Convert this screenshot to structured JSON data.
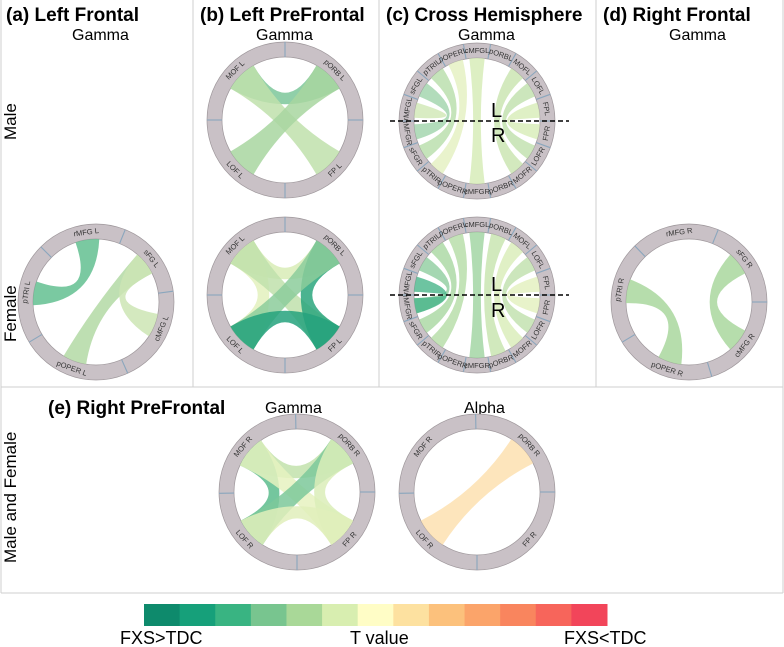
{
  "panels": {
    "a": {
      "title": "(a) Left Frontal",
      "band": "Gamma"
    },
    "b": {
      "title": "(b) Left PreFrontal",
      "band": "Gamma"
    },
    "c": {
      "title": "(c) Cross Hemisphere",
      "band": "Gamma"
    },
    "d": {
      "title": "(d) Right Frontal",
      "band": "Gamma"
    },
    "e": {
      "title": "(e) Right PreFrontal",
      "band_1": "Gamma",
      "band_2": "Alpha"
    }
  },
  "rows": {
    "male": "Male",
    "female": "Female",
    "both": "Male and Female"
  },
  "hemisphere_labels": {
    "left": "L",
    "right": "R"
  },
  "colorbar": {
    "left_label": "FXS>TDC",
    "center_label": "T value",
    "right_label": "FXS<TDC",
    "colors": [
      "#0e8a6c",
      "#16a07a",
      "#39b482",
      "#78c58f",
      "#a9d898",
      "#d8eeb0",
      "#fffdc6",
      "#fde1a0",
      "#fcc17c",
      "#fba46a",
      "#f9855e",
      "#f7655b",
      "#f2455a"
    ]
  },
  "circles": {
    "left_frontal_female": {
      "nodes": [
        "rMFG L",
        "sFG L",
        "cMFG L",
        "pOPER L",
        "pTRI L"
      ],
      "color": "#b4d8a4",
      "links": [
        {
          "from": "pTRI L",
          "to": "rMFG L",
          "color": "#63bf91"
        },
        {
          "from": "sFG L",
          "to": "pOPER L",
          "color": "#b3d9a5"
        },
        {
          "from": "sFG L",
          "to": "cMFG L",
          "color": "#cde5b4"
        }
      ]
    },
    "left_prefrontal_male": {
      "nodes": [
        "MOF L",
        "pORB L",
        "FP L",
        "LOF L"
      ],
      "links": [
        {
          "from": "MOF L",
          "to": "pORB L",
          "color": "#7cc79a"
        },
        {
          "from": "MOF L",
          "to": "FP L",
          "color": "#bfe0ac"
        },
        {
          "from": "pORB L",
          "to": "LOF L",
          "color": "#a8d6a0"
        }
      ]
    },
    "left_prefrontal_female": {
      "nodes": [
        "MOF L",
        "pORB L",
        "FP L",
        "LOF L"
      ],
      "links": [
        {
          "from": "MOF L",
          "to": "pORB L",
          "color": "#d8ecb6"
        },
        {
          "from": "MOF L",
          "to": "LOF L",
          "color": "#e3f1bd"
        },
        {
          "from": "MOF L",
          "to": "FP L",
          "color": "#bfe0ac"
        },
        {
          "from": "pORB L",
          "to": "FP L",
          "color": "#2aa67c"
        },
        {
          "from": "pORB L",
          "to": "LOF L",
          "color": "#8ccc9b"
        },
        {
          "from": "LOF L",
          "to": "FP L",
          "color": "#24a27c"
        }
      ]
    },
    "cross_male": {
      "nodes": [
        "rMFGL",
        "sFGL",
        "pTRIL",
        "pOPERL",
        "cMFGL",
        "pORBL",
        "MOFL",
        "LOFL",
        "FPL",
        "FPR",
        "LOFR",
        "MOFR",
        "pORBR",
        "cMFGR",
        "pOPERR",
        "pTRIR",
        "sFGR",
        "rMFGR"
      ]
    },
    "cross_female": {
      "nodes": [
        "rMFGL",
        "sFGL",
        "pTRIL",
        "pOPERL",
        "cMFGL",
        "pORBL",
        "MOFL",
        "LOFL",
        "FPL",
        "FPR",
        "LOFR",
        "MOFR",
        "pORBR",
        "cMFGR",
        "pOPERR",
        "pTRIR",
        "sFGR",
        "rMFGR"
      ]
    },
    "right_frontal_female": {
      "nodes": [
        "rMFG R",
        "sFG R",
        "cMFG R",
        "pOPER R",
        "pTRI R"
      ],
      "links": [
        {
          "from": "pTRI R",
          "to": "pOPER R",
          "color": "#a9d79e"
        },
        {
          "from": "sFG R",
          "to": "cMFG R",
          "color": "#a9d79e"
        }
      ]
    },
    "right_prefrontal_gamma": {
      "nodes": [
        "MOF R",
        "pORB R",
        "FP R",
        "LOF R"
      ],
      "links": [
        {
          "from": "MOF R",
          "to": "pORB R",
          "color": "#c2e2ac"
        },
        {
          "from": "MOF R",
          "to": "LOF R",
          "color": "#5cbc8d"
        },
        {
          "from": "MOF R",
          "to": "FP R",
          "color": "#e6f2bf"
        },
        {
          "from": "pORB R",
          "to": "LOF R",
          "color": "#7cc89a"
        },
        {
          "from": "pORB R",
          "to": "FP R",
          "color": "#dbedb8"
        },
        {
          "from": "LOF R",
          "to": "FP R",
          "color": "#e0efbb"
        }
      ]
    },
    "right_prefrontal_alpha": {
      "nodes": [
        "MOF R",
        "pORB R",
        "FP R",
        "LOF R"
      ],
      "links": [
        {
          "from": "pORB R",
          "to": "LOF R",
          "color": "#fde0b0"
        }
      ]
    }
  }
}
